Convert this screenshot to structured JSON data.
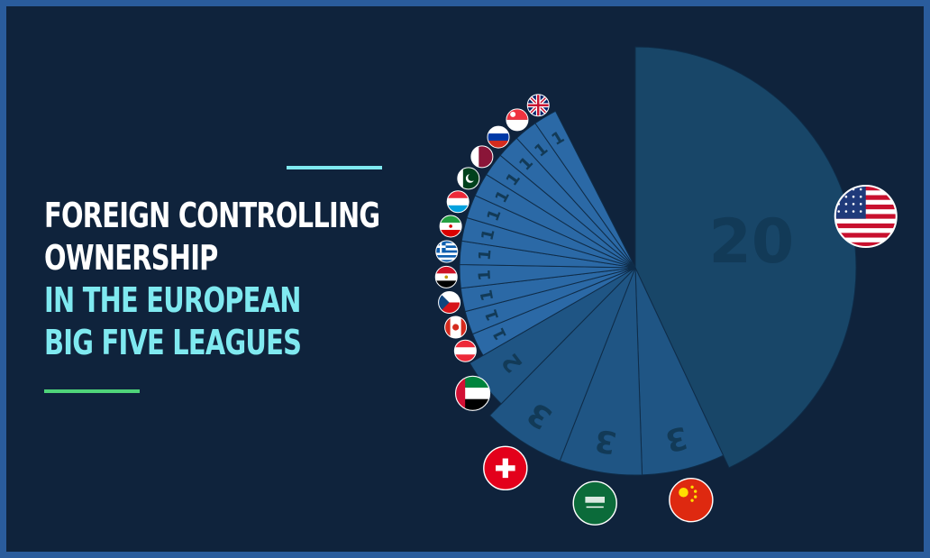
{
  "title": {
    "line1": "FOREIGN CONTROLLING",
    "line2": "OWNERSHIP",
    "line3": "IN THE EUROPEAN",
    "line4": "BIG FIVE LEAGUES"
  },
  "colors": {
    "background": "#0f233c",
    "frame": "#2a5c9c",
    "title_white": "#ffffff",
    "title_cyan": "#7fe9f0",
    "accent_green": "#4fd47a",
    "slice_dark": "#184668",
    "slice_mid": "#1f5584",
    "slice_light": "#2b69a6",
    "value_text": "#123a57"
  },
  "chart_data": {
    "type": "pie",
    "title": "FOREIGN CONTROLLING OWNERSHIP IN THE EUROPEAN BIG FIVE LEAGUES",
    "slices": [
      {
        "country_flag": "usa-flag",
        "value": 20,
        "label": "20"
      },
      {
        "country_flag": "china-flag",
        "value": 3,
        "label": "3"
      },
      {
        "country_flag": "saudi-arabia-flag",
        "value": 3,
        "label": "3"
      },
      {
        "country_flag": "switzerland-flag",
        "value": 3,
        "label": "3"
      },
      {
        "country_flag": "uae-flag",
        "value": 2,
        "label": "2"
      },
      {
        "country_flag": "austria-flag",
        "value": 1,
        "label": "1"
      },
      {
        "country_flag": "canada-flag",
        "value": 1,
        "label": "1"
      },
      {
        "country_flag": "czech-republic-flag",
        "value": 1,
        "label": "1"
      },
      {
        "country_flag": "egypt-flag",
        "value": 1,
        "label": "1"
      },
      {
        "country_flag": "greece-flag",
        "value": 1,
        "label": "1"
      },
      {
        "country_flag": "iran-flag",
        "value": 1,
        "label": "1"
      },
      {
        "country_flag": "luxembourg-flag",
        "value": 1,
        "label": "1"
      },
      {
        "country_flag": "pakistan-flag",
        "value": 1,
        "label": "1"
      },
      {
        "country_flag": "qatar-flag",
        "value": 1,
        "label": "1"
      },
      {
        "country_flag": "russia-flag",
        "value": 1,
        "label": "1"
      },
      {
        "country_flag": "singapore-flag",
        "value": 1,
        "label": "1"
      },
      {
        "country_flag": "uk-flag",
        "value": 1,
        "label": "1"
      }
    ]
  }
}
